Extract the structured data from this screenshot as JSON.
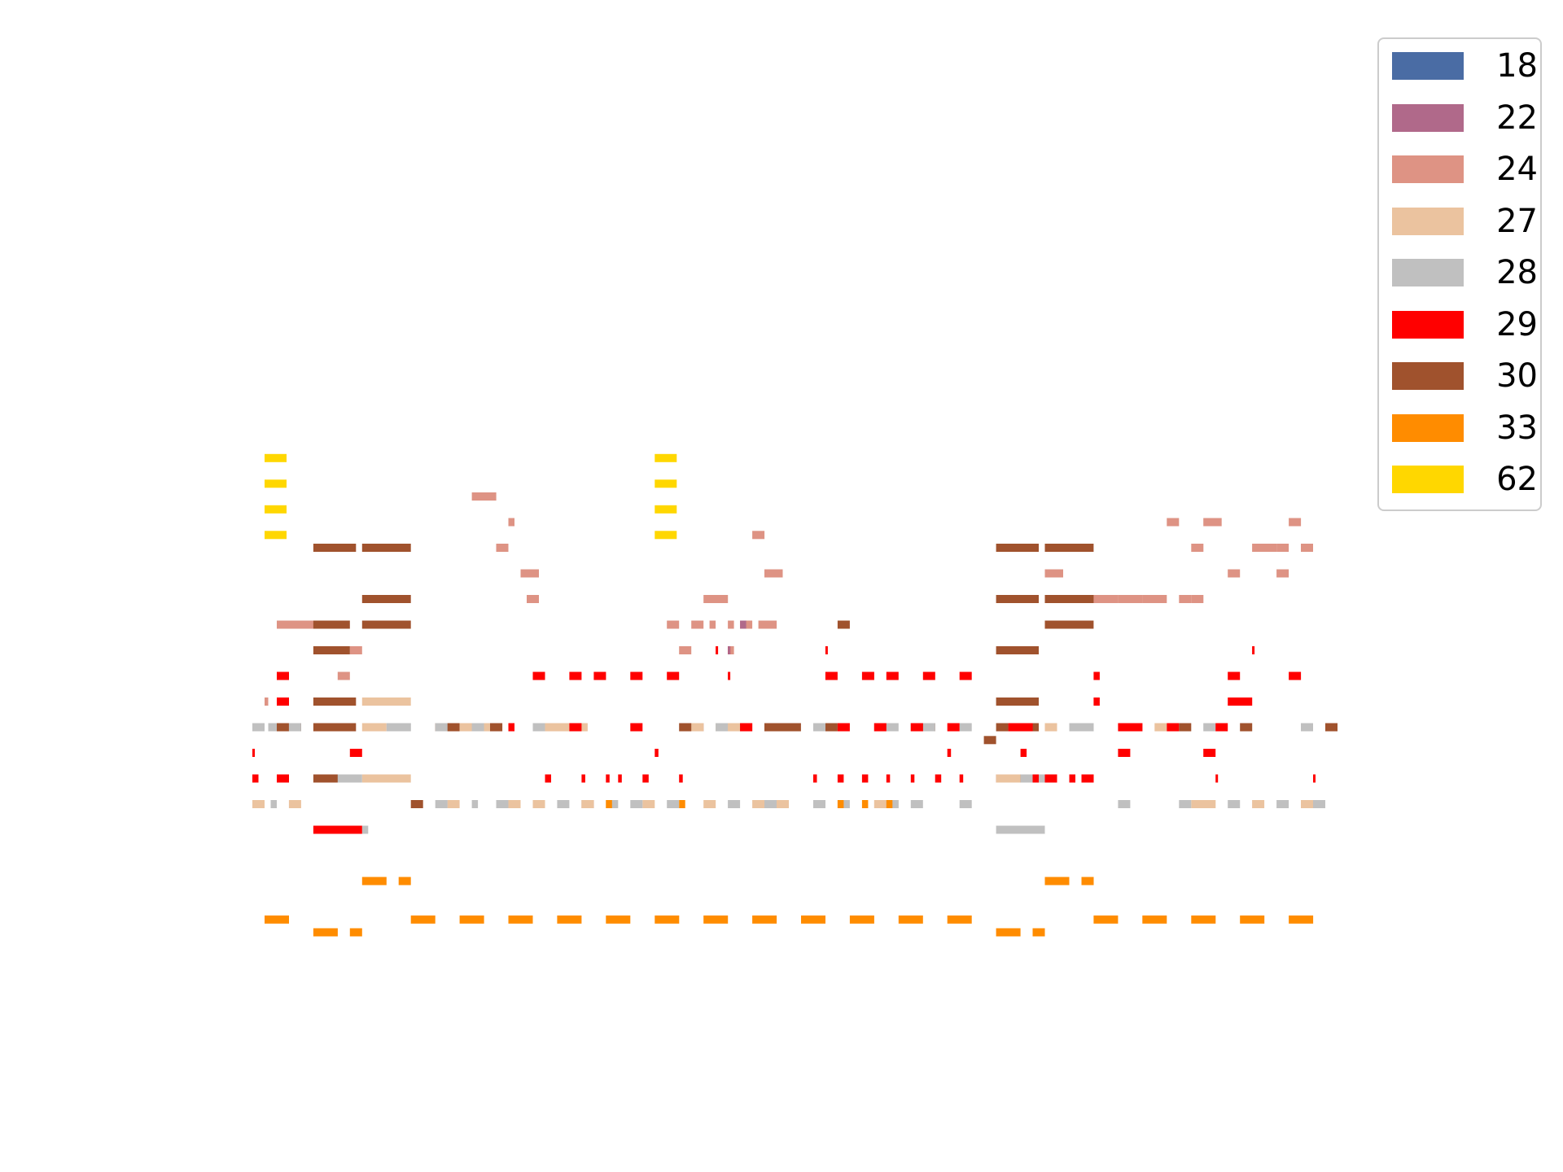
{
  "chart_data": {
    "type": "bar",
    "title": "",
    "xlabel": "",
    "ylabel": "",
    "axes_visible": false,
    "grid": false,
    "legend_placement": "upper right, outside plot",
    "x_range": [
      0,
      88
    ],
    "y_range": [
      0,
      34
    ],
    "colors": {
      "18": "#4a6ca4",
      "22": "#b0698a",
      "24": "#de9384",
      "27": "#ebc39f",
      "28": "#c0c0c0",
      "29": "#ff0000",
      "30": "#a0522d",
      "33": "#ff8c00",
      "62": "#ffd700"
    },
    "legend": [
      "18",
      "22",
      "24",
      "27",
      "28",
      "29",
      "30",
      "33",
      "62"
    ],
    "series": [
      {
        "name": "62",
        "segments": [
          [
            1,
            21.5,
            2.8
          ],
          [
            1,
            20.5,
            2.8
          ],
          [
            1,
            19.5,
            2.8
          ],
          [
            1,
            18.5,
            2.8
          ],
          [
            33,
            21.5,
            34.8
          ],
          [
            33,
            20.5,
            34.8
          ],
          [
            33,
            19.5,
            34.8
          ],
          [
            33,
            18.5,
            34.8
          ]
        ]
      },
      {
        "name": "24",
        "segments": [
          [
            18,
            20,
            20
          ],
          [
            21,
            19,
            21.5
          ],
          [
            20,
            18,
            21
          ],
          [
            22,
            17,
            23.5
          ],
          [
            22.5,
            16,
            23.5
          ],
          [
            2,
            15,
            6
          ],
          [
            8,
            14,
            9
          ],
          [
            7,
            13,
            8
          ],
          [
            1,
            12,
            1.3
          ],
          [
            41,
            18.5,
            42
          ],
          [
            42,
            17,
            43.5
          ],
          [
            37,
            16,
            39
          ],
          [
            34,
            15,
            35
          ],
          [
            36,
            15,
            37
          ],
          [
            37.5,
            15,
            38
          ],
          [
            39,
            15,
            39.5
          ],
          [
            40,
            15,
            41
          ],
          [
            41.5,
            15,
            43
          ],
          [
            35,
            14,
            36
          ],
          [
            39,
            14,
            39.5
          ],
          [
            68,
            16,
            69
          ],
          [
            69,
            16,
            71
          ],
          [
            65,
            17,
            66.5
          ],
          [
            75,
            19,
            76
          ],
          [
            78,
            19,
            79.5
          ],
          [
            77,
            18,
            78
          ],
          [
            80,
            17,
            81
          ],
          [
            82,
            18,
            84
          ],
          [
            84,
            18,
            85
          ],
          [
            84,
            17,
            85
          ],
          [
            71,
            16,
            73
          ],
          [
            73,
            16,
            75
          ],
          [
            76,
            16,
            77
          ],
          [
            77,
            16,
            78
          ],
          [
            85,
            19,
            86
          ],
          [
            86,
            18,
            87
          ]
        ]
      },
      {
        "name": "30",
        "segments": [
          [
            5,
            18,
            8.5
          ],
          [
            9,
            18,
            13
          ],
          [
            5,
            15,
            8
          ],
          [
            9,
            16,
            13
          ],
          [
            9,
            15,
            13
          ],
          [
            5,
            14,
            8
          ],
          [
            5,
            12,
            8.5
          ],
          [
            5,
            11,
            8.5
          ],
          [
            5,
            9,
            8
          ],
          [
            61,
            18,
            64.5
          ],
          [
            65,
            18,
            69
          ],
          [
            61,
            16,
            64.5
          ],
          [
            65,
            16,
            69
          ],
          [
            65,
            15,
            69
          ],
          [
            61,
            14,
            64.5
          ],
          [
            61,
            12,
            64.5
          ],
          [
            61,
            11,
            64.5
          ],
          [
            61,
            9,
            64.5
          ],
          [
            2,
            11,
            4
          ],
          [
            15,
            11,
            17
          ],
          [
            19,
            11,
            20.5
          ],
          [
            35,
            11,
            37
          ],
          [
            40,
            11,
            41
          ],
          [
            42,
            11,
            45
          ],
          [
            54,
            11,
            56
          ],
          [
            60,
            10.5,
            61
          ],
          [
            88,
            11,
            89
          ],
          [
            81,
            11,
            82
          ],
          [
            48,
            15,
            49
          ],
          [
            47,
            11,
            48
          ],
          [
            76,
            11,
            77
          ],
          [
            0,
            8,
            0.3
          ],
          [
            13,
            8,
            14
          ],
          [
            27,
            8,
            28
          ]
        ]
      },
      {
        "name": "27",
        "segments": [
          [
            9,
            11,
            11
          ],
          [
            9,
            12,
            13
          ],
          [
            9,
            9,
            13
          ],
          [
            17,
            11,
            19.5
          ],
          [
            24,
            11,
            26
          ],
          [
            26,
            11,
            27.5
          ],
          [
            36,
            11,
            37
          ],
          [
            38,
            11,
            40
          ],
          [
            61,
            9,
            63
          ],
          [
            74,
            11,
            75
          ],
          [
            65,
            11,
            66
          ],
          [
            0,
            8,
            1
          ],
          [
            3,
            8,
            4
          ],
          [
            16,
            8,
            17
          ],
          [
            21,
            8,
            22
          ],
          [
            23,
            8,
            24
          ],
          [
            27,
            8,
            28
          ],
          [
            32,
            8,
            33
          ],
          [
            37,
            8,
            38
          ],
          [
            41,
            8,
            44
          ],
          [
            46,
            8,
            47
          ],
          [
            51,
            8,
            53
          ],
          [
            77,
            8,
            79
          ],
          [
            82,
            8,
            83
          ],
          [
            86,
            8,
            87
          ]
        ]
      },
      {
        "name": "28",
        "segments": [
          [
            0,
            11,
            1
          ],
          [
            1.3,
            11,
            2
          ],
          [
            3,
            11,
            4
          ],
          [
            11,
            11,
            13
          ],
          [
            15,
            11,
            16
          ],
          [
            18,
            11,
            19
          ],
          [
            23,
            11,
            24
          ],
          [
            38,
            11,
            39
          ],
          [
            46,
            11,
            47
          ],
          [
            51,
            11,
            53
          ],
          [
            55,
            11,
            56
          ],
          [
            58,
            11,
            59
          ],
          [
            62,
            11,
            63
          ],
          [
            67,
            11,
            69
          ],
          [
            72,
            11,
            73
          ],
          [
            78,
            11,
            79
          ],
          [
            86,
            11,
            87
          ],
          [
            7,
            9,
            9
          ],
          [
            9,
            7,
            9.5
          ],
          [
            61,
            7,
            65
          ],
          [
            63,
            9,
            65
          ],
          [
            1.5,
            8,
            2
          ],
          [
            15,
            8,
            16
          ],
          [
            18,
            8,
            18.5
          ],
          [
            20,
            8,
            21
          ],
          [
            25,
            8,
            26
          ],
          [
            29,
            8,
            30
          ],
          [
            31,
            8,
            32
          ],
          [
            34,
            8,
            35
          ],
          [
            39,
            8,
            40
          ],
          [
            42,
            8,
            43
          ],
          [
            46,
            8,
            47
          ],
          [
            48,
            8,
            49
          ],
          [
            52,
            8,
            53
          ],
          [
            54,
            8,
            55
          ],
          [
            58,
            8,
            59
          ],
          [
            71,
            8,
            72
          ],
          [
            76,
            8,
            77
          ],
          [
            80,
            8,
            81
          ],
          [
            84,
            8,
            85
          ],
          [
            87,
            8,
            88
          ]
        ]
      },
      {
        "name": "29",
        "segments": [
          [
            2,
            13,
            3
          ],
          [
            2,
            12,
            3
          ],
          [
            23,
            13,
            24
          ],
          [
            26,
            13,
            27
          ],
          [
            28,
            13,
            29
          ],
          [
            31,
            13,
            32
          ],
          [
            34,
            13,
            35
          ],
          [
            47,
            13,
            48
          ],
          [
            50,
            13,
            51
          ],
          [
            52,
            13,
            53
          ],
          [
            55,
            13,
            56
          ],
          [
            58,
            13,
            59
          ],
          [
            80,
            13,
            81
          ],
          [
            85,
            13,
            86
          ],
          [
            21,
            11,
            21.5
          ],
          [
            26,
            11,
            27
          ],
          [
            31,
            11,
            32
          ],
          [
            40,
            11,
            41
          ],
          [
            48,
            11,
            49
          ],
          [
            51,
            11,
            52
          ],
          [
            54,
            11,
            55
          ],
          [
            57,
            11,
            58
          ],
          [
            62,
            11,
            64
          ],
          [
            71,
            11,
            73
          ],
          [
            75,
            11,
            76
          ],
          [
            79,
            11,
            80
          ],
          [
            0,
            10,
            0.2
          ],
          [
            8,
            10,
            9
          ],
          [
            33,
            10,
            33.3
          ],
          [
            57,
            10,
            57.3
          ],
          [
            63,
            10,
            63.5
          ],
          [
            71,
            10,
            72
          ],
          [
            78,
            10,
            79
          ],
          [
            0,
            9,
            0.5
          ],
          [
            2,
            9,
            3
          ],
          [
            24,
            9,
            24.5
          ],
          [
            27,
            9,
            27.3
          ],
          [
            29,
            9,
            29.3
          ],
          [
            30,
            9,
            30.3
          ],
          [
            32,
            9,
            32.5
          ],
          [
            35,
            9,
            35.3
          ],
          [
            46,
            9,
            46.3
          ],
          [
            48,
            9,
            48.5
          ],
          [
            50,
            9,
            50.5
          ],
          [
            52,
            9,
            52.3
          ],
          [
            54,
            9,
            54.3
          ],
          [
            56,
            9,
            56.5
          ],
          [
            58,
            9,
            58.3
          ],
          [
            79,
            9,
            79.2
          ],
          [
            87,
            9,
            87.2
          ],
          [
            5,
            7,
            9
          ],
          [
            64,
            9,
            64.5
          ],
          [
            65,
            9,
            66
          ],
          [
            67,
            9,
            67.5
          ],
          [
            68,
            9,
            69
          ],
          [
            38,
            14,
            38.2
          ],
          [
            39,
            14,
            39.2
          ],
          [
            39,
            13,
            39.2
          ],
          [
            47,
            14,
            47.2
          ],
          [
            69,
            13,
            69.5
          ],
          [
            69,
            12,
            69.5
          ],
          [
            80,
            12,
            82
          ],
          [
            82,
            14,
            82.2
          ]
        ]
      },
      {
        "name": "33",
        "segments": [
          [
            9,
            5,
            11
          ],
          [
            12,
            5,
            13
          ],
          [
            65,
            5,
            67
          ],
          [
            68,
            5,
            69
          ],
          [
            1,
            3.5,
            3
          ],
          [
            13,
            3.5,
            15
          ],
          [
            17,
            3.5,
            19
          ],
          [
            21,
            3.5,
            23
          ],
          [
            25,
            3.5,
            27
          ],
          [
            29,
            3.5,
            31
          ],
          [
            33,
            3.5,
            35
          ],
          [
            37,
            3.5,
            39
          ],
          [
            41,
            3.5,
            43
          ],
          [
            45,
            3.5,
            47
          ],
          [
            49,
            3.5,
            51
          ],
          [
            53,
            3.5,
            55
          ],
          [
            57,
            3.5,
            59
          ],
          [
            69,
            3.5,
            71
          ],
          [
            73,
            3.5,
            75
          ],
          [
            77,
            3.5,
            79
          ],
          [
            81,
            3.5,
            83
          ],
          [
            85,
            3.5,
            87
          ],
          [
            5,
            3,
            7
          ],
          [
            8,
            3,
            9
          ],
          [
            61,
            3,
            63
          ],
          [
            64,
            3,
            65
          ],
          [
            29,
            8,
            29.5
          ],
          [
            35,
            8,
            35.5
          ],
          [
            48,
            8,
            48.5
          ],
          [
            50,
            8,
            50.5
          ],
          [
            52,
            8,
            52.5
          ]
        ]
      },
      {
        "name": "18",
        "segments": []
      },
      {
        "name": "22",
        "segments": [
          [
            40,
            15,
            40.5
          ],
          [
            39,
            14,
            39.2
          ]
        ]
      }
    ]
  }
}
